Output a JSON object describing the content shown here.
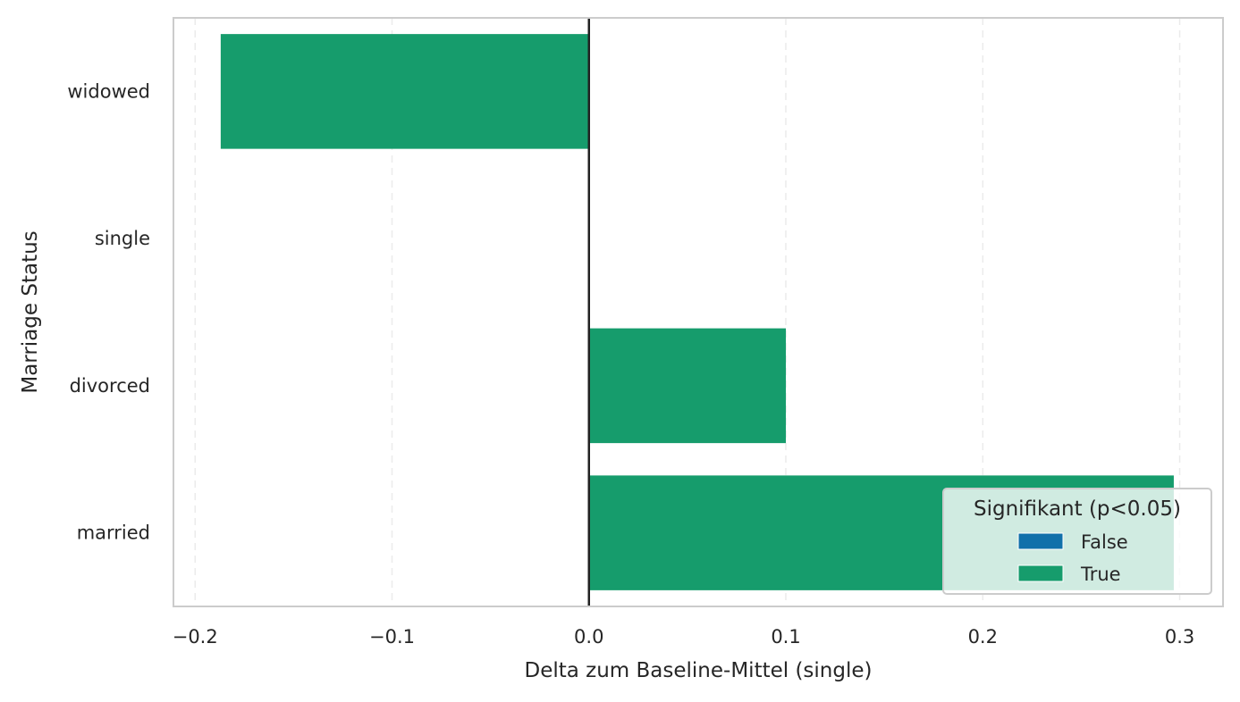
{
  "chart_data": {
    "type": "bar",
    "orientation": "horizontal",
    "categories": [
      "widowed",
      "single",
      "divorced",
      "married"
    ],
    "series": [
      {
        "name": "False",
        "color": "#1170AA",
        "values": [
          null,
          null,
          null,
          null
        ]
      },
      {
        "name": "True",
        "color": "#169C6C",
        "values": [
          -0.187,
          null,
          0.1,
          0.297
        ]
      }
    ],
    "xlabel": "Delta zum Baseline-Mittel (single)",
    "ylabel": "Marriage Status",
    "xlim": [
      -0.211,
      0.322
    ],
    "xticks": [
      -0.2,
      -0.1,
      0.0,
      0.1,
      0.2,
      0.3
    ],
    "xtick_labels": [
      "−0.2",
      "−0.1",
      "0.0",
      "0.1",
      "0.2",
      "0.3"
    ],
    "zero_line": 0.0,
    "grid": {
      "x": true,
      "y": false,
      "style": "dashed"
    },
    "legend": {
      "title": "Signifikant (p<0.05)",
      "entries": [
        "False",
        "True"
      ],
      "colors": [
        "#1170AA",
        "#169C6C"
      ],
      "placement": "lower-right"
    }
  }
}
